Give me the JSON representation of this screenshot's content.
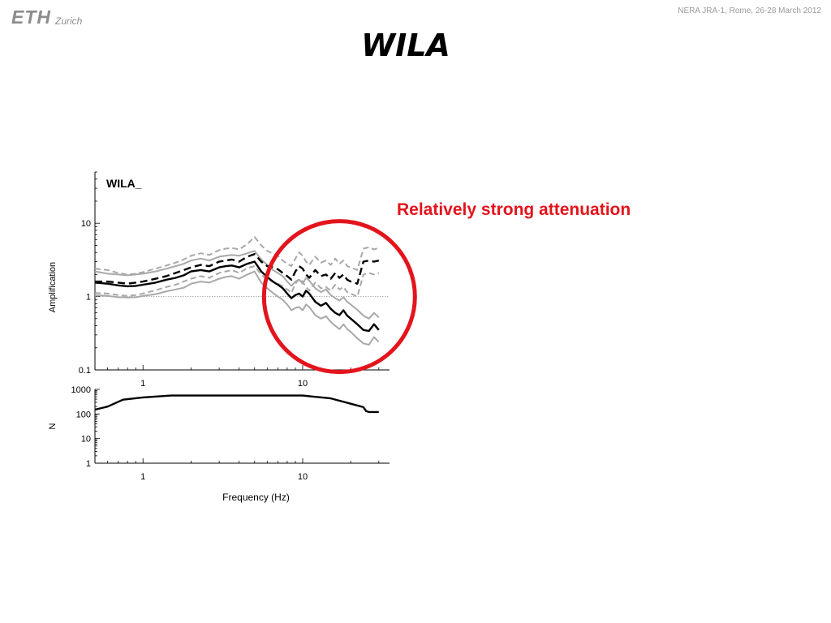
{
  "header": {
    "logo_main": "ETH",
    "logo_sub": "Zurich",
    "conference": "NERA JRA-1, Rome, 26-28 March 2012"
  },
  "slide": {
    "title": "WILA",
    "annotation": "Relatively strong attenuation",
    "highlight_color": "#e3141c"
  },
  "chart_data": [
    {
      "type": "line",
      "title": "WILA_",
      "xlabel": "",
      "ylabel": "Amplification",
      "x_scale": "log",
      "y_scale": "log",
      "xlim": [
        0.5,
        35
      ],
      "ylim": [
        0.1,
        50
      ],
      "x_ticks": [
        1,
        10
      ],
      "x_tick_labels": [
        "1",
        "10"
      ],
      "y_ticks": [
        0.1,
        1,
        10
      ],
      "y_tick_labels": [
        "0.1",
        "1",
        "10"
      ],
      "reference_line": 1,
      "annotation_circle_center": {
        "x": 17,
        "y": 1.0
      },
      "series": [
        {
          "style": "solid-black",
          "x": [
            0.5,
            0.6,
            0.7,
            0.8,
            0.9,
            1.0,
            1.2,
            1.4,
            1.6,
            1.8,
            2.0,
            2.3,
            2.6,
            3.0,
            3.3,
            3.6,
            4.0,
            4.5,
            5.0,
            5.5,
            6.0,
            6.5,
            7.0,
            7.5,
            8.0,
            8.5,
            9.0,
            9.5,
            10.0,
            10.5,
            11.0,
            12.0,
            13.0,
            14.0,
            15.0,
            16.0,
            17.0,
            18.0,
            19.0,
            20.0,
            22.0,
            24.0,
            26.0,
            28.0,
            30.0
          ],
          "y": [
            1.55,
            1.5,
            1.42,
            1.38,
            1.4,
            1.45,
            1.55,
            1.7,
            1.8,
            1.95,
            2.2,
            2.3,
            2.2,
            2.5,
            2.6,
            2.65,
            2.5,
            2.8,
            3.0,
            2.2,
            1.85,
            1.6,
            1.45,
            1.3,
            1.1,
            0.95,
            1.05,
            1.1,
            1.0,
            1.2,
            1.1,
            0.85,
            0.75,
            0.82,
            0.68,
            0.6,
            0.56,
            0.65,
            0.55,
            0.5,
            0.42,
            0.35,
            0.34,
            0.42,
            0.35
          ]
        },
        {
          "style": "dashed-black",
          "x": [
            0.5,
            0.6,
            0.7,
            0.8,
            0.9,
            1.0,
            1.2,
            1.4,
            1.6,
            1.8,
            2.0,
            2.3,
            2.6,
            3.0,
            3.3,
            3.6,
            4.0,
            4.5,
            5.0,
            5.5,
            6.0,
            6.5,
            7.0,
            7.5,
            8.0,
            8.5,
            9.0,
            9.5,
            10.0,
            10.5,
            11.0,
            12.0,
            13.0,
            14.0,
            15.0,
            16.0,
            17.0,
            18.0,
            19.0,
            20.0,
            22.0,
            24.0,
            26.0,
            28.0,
            30.0
          ],
          "y": [
            1.6,
            1.6,
            1.55,
            1.5,
            1.55,
            1.6,
            1.75,
            1.9,
            2.1,
            2.3,
            2.5,
            2.7,
            2.6,
            3.0,
            3.1,
            3.2,
            3.0,
            3.5,
            3.8,
            3.0,
            2.6,
            2.5,
            2.35,
            2.1,
            1.9,
            1.7,
            2.2,
            2.6,
            2.4,
            2.0,
            1.8,
            2.3,
            1.9,
            2.0,
            1.75,
            2.1,
            1.8,
            2.0,
            1.7,
            1.6,
            1.5,
            3.0,
            3.1,
            3.0,
            3.1
          ]
        },
        {
          "style": "solid-gray",
          "x": [
            0.5,
            0.6,
            0.7,
            0.8,
            0.9,
            1.0,
            1.2,
            1.4,
            1.6,
            1.8,
            2.0,
            2.3,
            2.6,
            3.0,
            3.3,
            3.6,
            4.0,
            4.5,
            5.0,
            5.5,
            6.0,
            6.5,
            7.0,
            7.5,
            8.0,
            8.5,
            9.0,
            9.5,
            10.0,
            10.5,
            11.0,
            12.0,
            13.0,
            14.0,
            15.0,
            16.0,
            17.0,
            18.0,
            19.0,
            20.0,
            22.0,
            24.0,
            26.0,
            28.0,
            30.0
          ],
          "y": [
            2.2,
            2.05,
            2.0,
            1.95,
            2.0,
            2.05,
            2.2,
            2.4,
            2.6,
            2.8,
            3.1,
            3.3,
            3.1,
            3.5,
            3.6,
            3.7,
            3.6,
            3.9,
            4.2,
            3.2,
            2.7,
            2.3,
            2.1,
            1.9,
            1.6,
            1.4,
            1.6,
            1.7,
            1.5,
            1.8,
            1.65,
            1.3,
            1.15,
            1.25,
            1.05,
            0.95,
            0.88,
            0.98,
            0.85,
            0.78,
            0.66,
            0.55,
            0.5,
            0.6,
            0.52
          ]
        },
        {
          "style": "solid-gray",
          "x": [
            0.5,
            0.6,
            0.7,
            0.8,
            0.9,
            1.0,
            1.2,
            1.4,
            1.6,
            1.8,
            2.0,
            2.3,
            2.6,
            3.0,
            3.3,
            3.6,
            4.0,
            4.5,
            5.0,
            5.5,
            6.0,
            6.5,
            7.0,
            7.5,
            8.0,
            8.5,
            9.0,
            9.5,
            10.0,
            10.5,
            11.0,
            12.0,
            13.0,
            14.0,
            15.0,
            16.0,
            17.0,
            18.0,
            19.0,
            20.0,
            22.0,
            24.0,
            26.0,
            28.0,
            30.0
          ],
          "y": [
            1.05,
            1.02,
            0.98,
            0.97,
            0.98,
            1.02,
            1.08,
            1.18,
            1.25,
            1.32,
            1.5,
            1.6,
            1.55,
            1.75,
            1.85,
            1.9,
            1.75,
            2.0,
            2.2,
            1.55,
            1.3,
            1.12,
            1.0,
            0.9,
            0.78,
            0.65,
            0.7,
            0.72,
            0.65,
            0.78,
            0.72,
            0.56,
            0.5,
            0.54,
            0.45,
            0.4,
            0.36,
            0.42,
            0.36,
            0.33,
            0.27,
            0.23,
            0.22,
            0.28,
            0.24
          ]
        },
        {
          "style": "dashed-gray",
          "x": [
            0.5,
            0.6,
            0.7,
            0.8,
            0.9,
            1.0,
            1.2,
            1.4,
            1.6,
            1.8,
            2.0,
            2.3,
            2.6,
            3.0,
            3.3,
            3.6,
            4.0,
            4.5,
            5.0,
            5.5,
            6.0,
            6.5,
            7.0,
            7.5,
            8.0,
            8.5,
            9.0,
            9.5,
            10.0,
            10.5,
            11.0,
            12.0,
            13.0,
            14.0,
            15.0,
            16.0,
            17.0,
            18.0,
            19.0,
            20.0,
            22.0,
            24.0,
            26.0,
            28.0,
            30.0
          ],
          "y": [
            2.4,
            2.3,
            2.1,
            2.0,
            2.05,
            2.15,
            2.4,
            2.65,
            2.9,
            3.2,
            3.6,
            3.9,
            3.7,
            4.3,
            4.5,
            4.6,
            4.4,
            5.2,
            6.5,
            5.0,
            4.2,
            3.9,
            3.6,
            3.1,
            2.8,
            2.6,
            3.3,
            4.0,
            3.6,
            3.0,
            2.7,
            3.5,
            2.9,
            3.1,
            2.7,
            3.3,
            2.8,
            3.1,
            2.6,
            2.5,
            2.3,
            4.5,
            4.7,
            4.4,
            4.6
          ]
        },
        {
          "style": "dashed-gray",
          "x": [
            0.5,
            0.6,
            0.7,
            0.8,
            0.9,
            1.0,
            1.2,
            1.4,
            1.6,
            1.8,
            2.0,
            2.3,
            2.6,
            3.0,
            3.3,
            3.6,
            4.0,
            4.5,
            5.0,
            5.5,
            6.0,
            6.5,
            7.0,
            7.5,
            8.0,
            8.5,
            9.0,
            9.5,
            10.0,
            10.5,
            11.0,
            12.0,
            13.0,
            14.0,
            15.0,
            16.0,
            17.0,
            18.0,
            19.0,
            20.0,
            22.0,
            24.0,
            26.0,
            28.0,
            30.0
          ],
          "y": [
            1.12,
            1.1,
            1.05,
            1.02,
            1.05,
            1.1,
            1.22,
            1.35,
            1.45,
            1.6,
            1.75,
            1.9,
            1.8,
            2.1,
            2.2,
            2.3,
            2.1,
            2.45,
            2.6,
            2.0,
            1.7,
            1.6,
            1.5,
            1.38,
            1.25,
            1.12,
            1.5,
            1.75,
            1.6,
            1.35,
            1.2,
            1.55,
            1.3,
            1.35,
            1.2,
            1.45,
            1.25,
            1.35,
            1.15,
            1.1,
            1.0,
            2.0,
            2.1,
            2.0,
            2.1
          ]
        }
      ]
    },
    {
      "type": "line",
      "title": "",
      "xlabel": "Frequency (Hz)",
      "ylabel": "N",
      "x_scale": "log",
      "y_scale": "log",
      "xlim": [
        0.5,
        35
      ],
      "ylim": [
        1,
        1000
      ],
      "x_ticks": [
        1,
        10
      ],
      "x_tick_labels": [
        "1",
        "10"
      ],
      "top_x_tick_labels": [
        "1",
        "10"
      ],
      "y_ticks": [
        1,
        10,
        100,
        1000
      ],
      "y_tick_labels": [
        "1",
        "10",
        "100",
        "1000"
      ],
      "series": [
        {
          "style": "solid-black",
          "x": [
            0.5,
            0.6,
            0.75,
            1.0,
            1.5,
            3.0,
            6.0,
            10.0,
            15.0,
            20.0,
            24.0,
            25.0,
            26.0,
            30.0
          ],
          "y": [
            150,
            200,
            380,
            470,
            560,
            560,
            560,
            560,
            430,
            260,
            190,
            130,
            120,
            120
          ]
        }
      ]
    }
  ]
}
